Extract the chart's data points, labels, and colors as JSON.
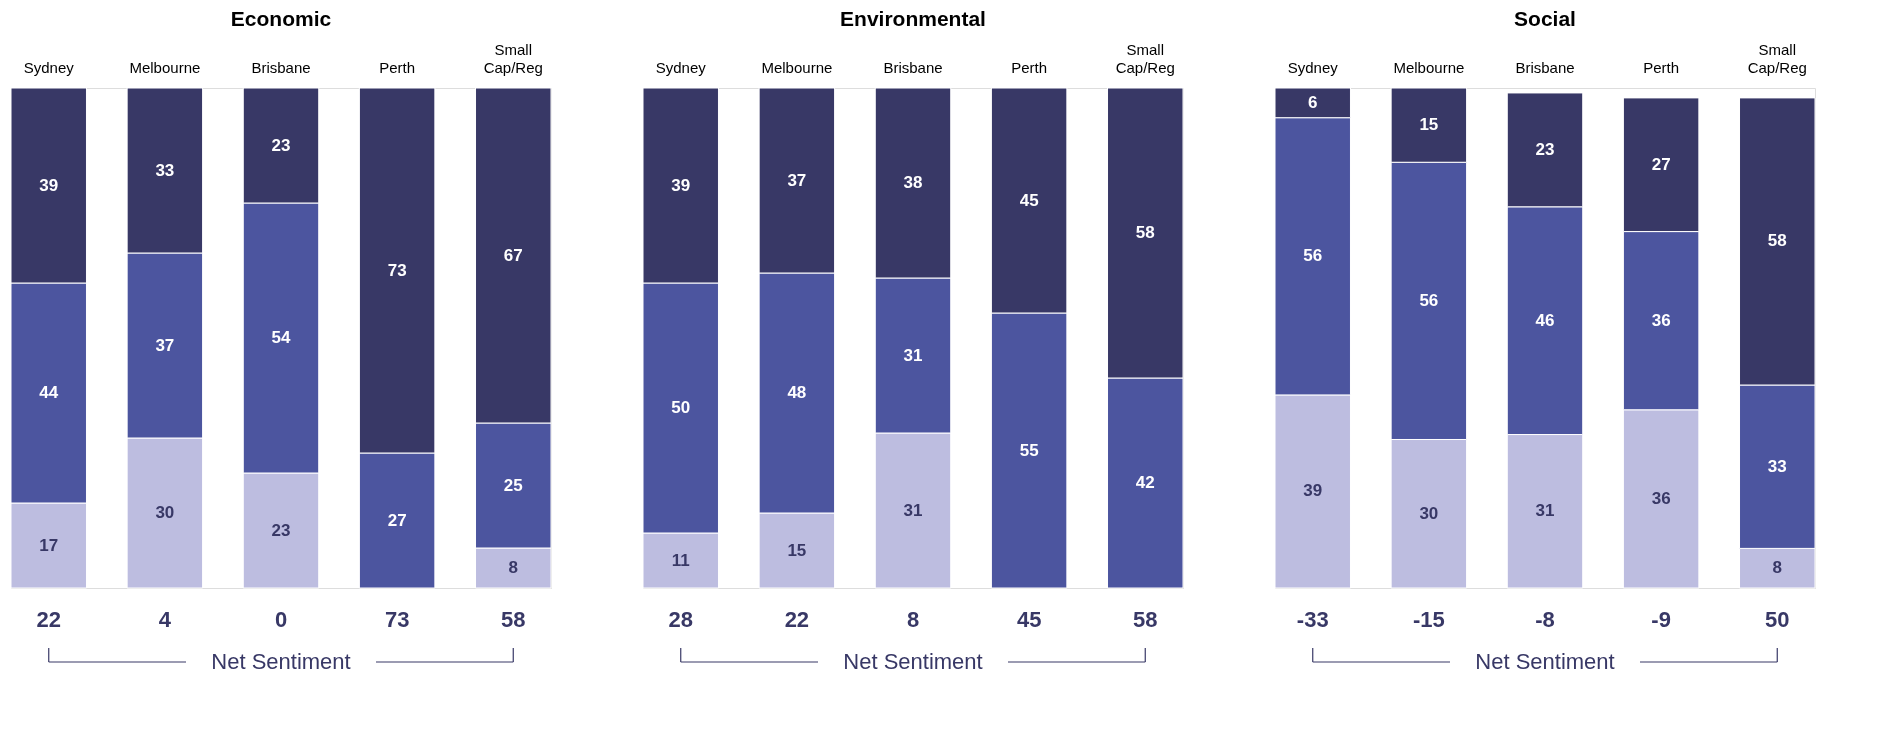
{
  "chart_data": [
    {
      "type": "bar",
      "stacked": true,
      "data_labels": true,
      "title": "Economic",
      "categories": [
        "Sydney",
        "Melbourne",
        "Brisbane",
        "Perth",
        "Small Cap/Reg"
      ],
      "series": [
        {
          "color": "#bdbde0",
          "values": [
            17,
            30,
            23,
            null,
            8
          ]
        },
        {
          "color": "#4c559f",
          "values": [
            44,
            37,
            54,
            27,
            25
          ]
        },
        {
          "color": "#383866",
          "values": [
            39,
            33,
            23,
            73,
            67
          ]
        }
      ],
      "annotations": [
        "22",
        "4",
        "0",
        "73",
        "58",
        "Net Sentiment"
      ]
    },
    {
      "type": "bar",
      "stacked": true,
      "data_labels": true,
      "title": "Environmental",
      "categories": [
        "Sydney",
        "Melbourne",
        "Brisbane",
        "Perth",
        "Small Cap/Reg"
      ],
      "series": [
        {
          "color": "#bdbde0",
          "values": [
            11,
            15,
            31,
            null,
            null
          ]
        },
        {
          "color": "#4c559f",
          "values": [
            50,
            48,
            31,
            55,
            42
          ]
        },
        {
          "color": "#383866",
          "values": [
            39,
            37,
            38,
            45,
            58
          ]
        }
      ],
      "annotations": [
        "28",
        "22",
        "8",
        "45",
        "58",
        "Net Sentiment"
      ]
    },
    {
      "type": "bar",
      "stacked": true,
      "data_labels": true,
      "title": "Social",
      "categories": [
        "Sydney",
        "Melbourne",
        "Brisbane",
        "Perth",
        "Small Cap/Reg"
      ],
      "series": [
        {
          "color": "#bdbde0",
          "values": [
            39,
            30,
            31,
            36,
            8
          ]
        },
        {
          "color": "#4c559f",
          "values": [
            56,
            56,
            46,
            36,
            33
          ]
        },
        {
          "color": "#383866",
          "values": [
            6,
            15,
            23,
            27,
            58
          ]
        }
      ],
      "annotations": [
        "-33",
        "-15",
        "-8",
        "-9",
        "50",
        "Net Sentiment"
      ]
    }
  ]
}
